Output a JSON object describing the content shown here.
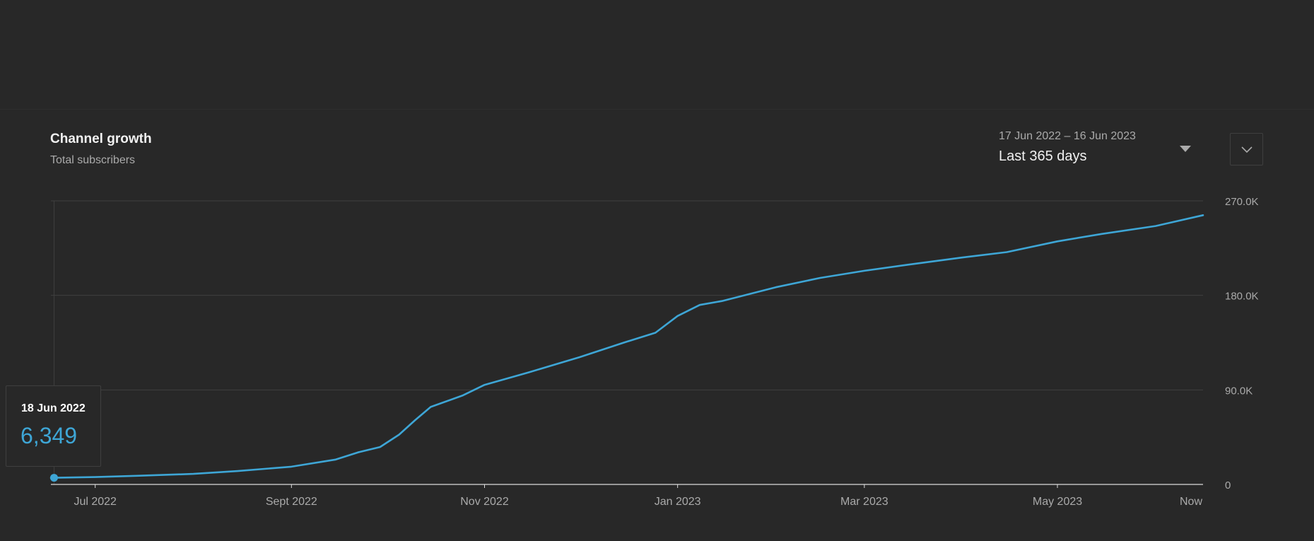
{
  "header": {
    "title": "Channel growth",
    "subtitle": "Total subscribers"
  },
  "date_range": {
    "dates": "17 Jun 2022 – 16 Jun 2023",
    "label": "Last 365 days"
  },
  "tooltip": {
    "date": "18 Jun 2022",
    "value": "6,349"
  },
  "colors": {
    "line": "#3ea6d6",
    "grid": "#3f3f3f",
    "axis": "#aaaaaa",
    "baseline": "#dcdcdc"
  },
  "chart_data": {
    "type": "line",
    "title": "Channel growth",
    "subtitle": "Total subscribers",
    "x_type": "date",
    "x_range": [
      "2022-06-17",
      "2023-06-16"
    ],
    "ylim": [
      0,
      270000
    ],
    "y_ticks": [
      {
        "value": 0,
        "label": "0"
      },
      {
        "value": 90000,
        "label": "90.0K"
      },
      {
        "value": 180000,
        "label": "180.0K"
      },
      {
        "value": 270000,
        "label": "270.0K"
      }
    ],
    "x_ticks": [
      {
        "date": "2022-07-01",
        "label": "Jul 2022"
      },
      {
        "date": "2022-09-01",
        "label": "Sept 2022"
      },
      {
        "date": "2022-11-01",
        "label": "Nov 2022"
      },
      {
        "date": "2023-01-01",
        "label": "Jan 2023"
      },
      {
        "date": "2023-03-01",
        "label": "Mar 2023"
      },
      {
        "date": "2023-05-01",
        "label": "May 2023"
      },
      {
        "date": "2023-06-16",
        "label": "Now"
      }
    ],
    "grid": true,
    "highlight": {
      "date": "2022-06-18",
      "value": 6349
    },
    "series": [
      {
        "x": [
          "2022-06-17",
          "2022-06-18",
          "2022-07-01",
          "2022-07-15",
          "2022-08-01",
          "2022-08-15",
          "2022-09-01",
          "2022-09-15",
          "2022-09-22",
          "2022-09-29",
          "2022-10-05",
          "2022-10-10",
          "2022-10-15",
          "2022-10-25",
          "2022-11-01",
          "2022-11-15",
          "2022-12-01",
          "2022-12-15",
          "2022-12-25",
          "2023-01-01",
          "2023-01-08",
          "2023-01-15",
          "2023-02-01",
          "2023-02-15",
          "2023-03-01",
          "2023-03-15",
          "2023-04-01",
          "2023-04-15",
          "2023-05-01",
          "2023-05-15",
          "2023-06-01",
          "2023-06-16"
        ],
        "y": [
          6200,
          6349,
          7000,
          8300,
          10000,
          12700,
          16900,
          23700,
          30500,
          35600,
          47400,
          61000,
          73800,
          84600,
          94800,
          106700,
          121100,
          135000,
          144400,
          160400,
          170900,
          174600,
          187700,
          196600,
          203400,
          209300,
          216100,
          221200,
          231400,
          238500,
          246000,
          256300
        ]
      }
    ]
  }
}
